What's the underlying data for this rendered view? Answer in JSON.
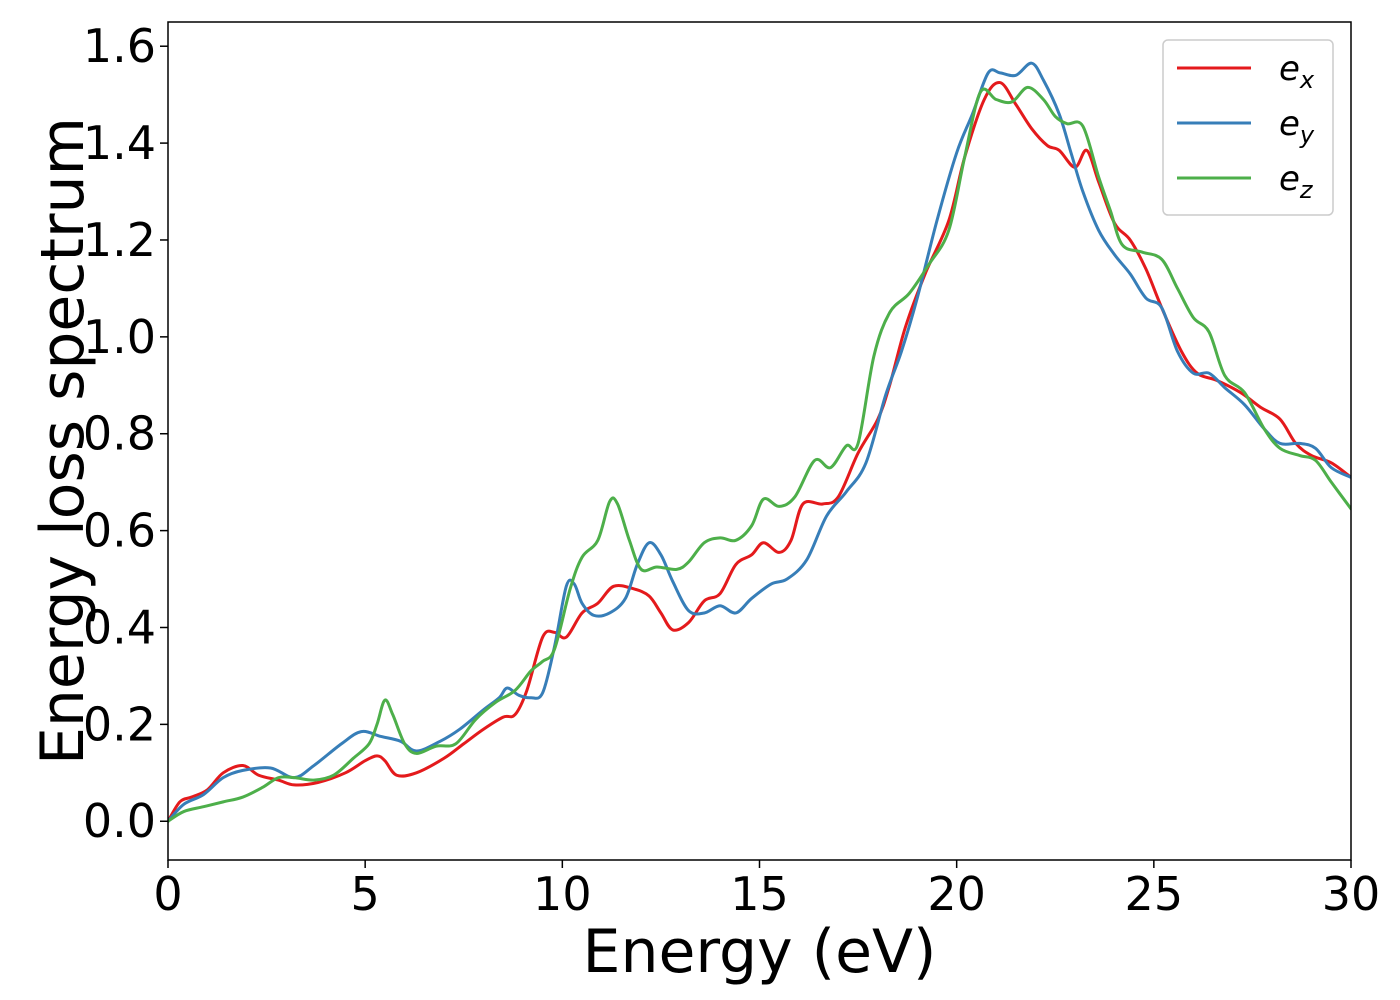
{
  "chart_data": {
    "type": "line",
    "xlabel": "Energy (eV)",
    "ylabel": "Energy loss spectrum",
    "xlim": [
      0,
      30
    ],
    "ylim": [
      -0.08,
      1.65
    ],
    "xticks": [
      0,
      5,
      10,
      15,
      20,
      25,
      30
    ],
    "xtick_labels": [
      "0",
      "5",
      "10",
      "15",
      "20",
      "25",
      "30"
    ],
    "yticks": [
      0.0,
      0.2,
      0.4,
      0.6,
      0.8,
      1.0,
      1.2,
      1.4,
      1.6
    ],
    "ytick_labels": [
      "0.0",
      "0.2",
      "0.4",
      "0.6",
      "0.8",
      "1.0",
      "1.2",
      "1.4",
      "1.6"
    ],
    "grid": false,
    "legend_position": "top-right",
    "series": [
      {
        "name": "e_x",
        "label_base": "e",
        "label_sub": "x",
        "color": "#e41a1c",
        "points": [
          [
            0,
            0.0
          ],
          [
            0.3,
            0.04
          ],
          [
            0.6,
            0.05
          ],
          [
            1.0,
            0.065
          ],
          [
            1.4,
            0.1
          ],
          [
            1.9,
            0.115
          ],
          [
            2.3,
            0.095
          ],
          [
            2.8,
            0.085
          ],
          [
            3.2,
            0.075
          ],
          [
            3.8,
            0.08
          ],
          [
            4.5,
            0.1
          ],
          [
            5.0,
            0.125
          ],
          [
            5.3,
            0.135
          ],
          [
            5.5,
            0.125
          ],
          [
            5.8,
            0.095
          ],
          [
            6.3,
            0.1
          ],
          [
            7.0,
            0.13
          ],
          [
            7.5,
            0.16
          ],
          [
            8.0,
            0.19
          ],
          [
            8.5,
            0.215
          ],
          [
            8.8,
            0.22
          ],
          [
            9.1,
            0.27
          ],
          [
            9.5,
            0.38
          ],
          [
            9.8,
            0.39
          ],
          [
            10.1,
            0.38
          ],
          [
            10.5,
            0.43
          ],
          [
            10.9,
            0.45
          ],
          [
            11.3,
            0.485
          ],
          [
            11.8,
            0.48
          ],
          [
            12.2,
            0.465
          ],
          [
            12.5,
            0.43
          ],
          [
            12.8,
            0.395
          ],
          [
            13.2,
            0.41
          ],
          [
            13.6,
            0.455
          ],
          [
            14.0,
            0.47
          ],
          [
            14.4,
            0.53
          ],
          [
            14.8,
            0.55
          ],
          [
            15.1,
            0.575
          ],
          [
            15.5,
            0.555
          ],
          [
            15.8,
            0.58
          ],
          [
            16.1,
            0.655
          ],
          [
            16.6,
            0.655
          ],
          [
            17.0,
            0.67
          ],
          [
            17.5,
            0.76
          ],
          [
            18.0,
            0.83
          ],
          [
            18.3,
            0.9
          ],
          [
            18.7,
            1.02
          ],
          [
            19.2,
            1.13
          ],
          [
            19.8,
            1.24
          ],
          [
            20.2,
            1.37
          ],
          [
            20.7,
            1.49
          ],
          [
            21.1,
            1.525
          ],
          [
            21.5,
            1.48
          ],
          [
            21.9,
            1.43
          ],
          [
            22.3,
            1.395
          ],
          [
            22.6,
            1.385
          ],
          [
            23.0,
            1.35
          ],
          [
            23.3,
            1.385
          ],
          [
            23.6,
            1.32
          ],
          [
            24.0,
            1.235
          ],
          [
            24.4,
            1.2
          ],
          [
            24.8,
            1.14
          ],
          [
            25.2,
            1.06
          ],
          [
            25.7,
            0.97
          ],
          [
            26.1,
            0.925
          ],
          [
            26.6,
            0.91
          ],
          [
            27.2,
            0.885
          ],
          [
            27.7,
            0.855
          ],
          [
            28.2,
            0.83
          ],
          [
            28.6,
            0.78
          ],
          [
            29.0,
            0.755
          ],
          [
            29.5,
            0.74
          ],
          [
            30.0,
            0.71
          ]
        ]
      },
      {
        "name": "e_y",
        "label_base": "e",
        "label_sub": "y",
        "color": "#377eb8",
        "points": [
          [
            0,
            0.0
          ],
          [
            0.4,
            0.035
          ],
          [
            0.9,
            0.055
          ],
          [
            1.4,
            0.09
          ],
          [
            1.9,
            0.105
          ],
          [
            2.6,
            0.11
          ],
          [
            3.2,
            0.09
          ],
          [
            3.7,
            0.115
          ],
          [
            4.4,
            0.16
          ],
          [
            4.9,
            0.185
          ],
          [
            5.4,
            0.175
          ],
          [
            5.9,
            0.165
          ],
          [
            6.3,
            0.145
          ],
          [
            6.9,
            0.165
          ],
          [
            7.4,
            0.19
          ],
          [
            8.0,
            0.23
          ],
          [
            8.4,
            0.255
          ],
          [
            8.6,
            0.275
          ],
          [
            8.9,
            0.26
          ],
          [
            9.2,
            0.255
          ],
          [
            9.5,
            0.265
          ],
          [
            9.8,
            0.36
          ],
          [
            10.1,
            0.485
          ],
          [
            10.3,
            0.49
          ],
          [
            10.5,
            0.45
          ],
          [
            10.8,
            0.425
          ],
          [
            11.2,
            0.43
          ],
          [
            11.6,
            0.46
          ],
          [
            11.9,
            0.53
          ],
          [
            12.2,
            0.575
          ],
          [
            12.5,
            0.55
          ],
          [
            12.8,
            0.495
          ],
          [
            13.2,
            0.435
          ],
          [
            13.6,
            0.43
          ],
          [
            14.0,
            0.445
          ],
          [
            14.4,
            0.43
          ],
          [
            14.8,
            0.46
          ],
          [
            15.3,
            0.49
          ],
          [
            15.7,
            0.5
          ],
          [
            16.2,
            0.54
          ],
          [
            16.7,
            0.63
          ],
          [
            17.2,
            0.68
          ],
          [
            17.7,
            0.74
          ],
          [
            18.2,
            0.88
          ],
          [
            18.6,
            0.97
          ],
          [
            19.0,
            1.08
          ],
          [
            19.5,
            1.24
          ],
          [
            20.0,
            1.38
          ],
          [
            20.4,
            1.46
          ],
          [
            20.8,
            1.545
          ],
          [
            21.1,
            1.545
          ],
          [
            21.5,
            1.54
          ],
          [
            21.9,
            1.565
          ],
          [
            22.2,
            1.53
          ],
          [
            22.6,
            1.46
          ],
          [
            22.9,
            1.38
          ],
          [
            23.2,
            1.3
          ],
          [
            23.6,
            1.22
          ],
          [
            24.0,
            1.17
          ],
          [
            24.4,
            1.13
          ],
          [
            24.8,
            1.08
          ],
          [
            25.2,
            1.06
          ],
          [
            25.6,
            0.97
          ],
          [
            26.0,
            0.925
          ],
          [
            26.4,
            0.925
          ],
          [
            26.8,
            0.895
          ],
          [
            27.3,
            0.86
          ],
          [
            27.8,
            0.81
          ],
          [
            28.2,
            0.78
          ],
          [
            28.7,
            0.78
          ],
          [
            29.1,
            0.77
          ],
          [
            29.5,
            0.73
          ],
          [
            30.0,
            0.71
          ]
        ]
      },
      {
        "name": "e_z",
        "label_base": "e",
        "label_sub": "z",
        "color": "#4daf4a",
        "points": [
          [
            0,
            0.0
          ],
          [
            0.4,
            0.02
          ],
          [
            0.9,
            0.03
          ],
          [
            1.4,
            0.04
          ],
          [
            1.9,
            0.05
          ],
          [
            2.4,
            0.07
          ],
          [
            2.8,
            0.09
          ],
          [
            3.2,
            0.09
          ],
          [
            3.7,
            0.085
          ],
          [
            4.2,
            0.095
          ],
          [
            4.7,
            0.13
          ],
          [
            5.1,
            0.16
          ],
          [
            5.3,
            0.2
          ],
          [
            5.5,
            0.25
          ],
          [
            5.7,
            0.22
          ],
          [
            6.0,
            0.16
          ],
          [
            6.3,
            0.14
          ],
          [
            6.8,
            0.155
          ],
          [
            7.3,
            0.16
          ],
          [
            7.8,
            0.21
          ],
          [
            8.3,
            0.245
          ],
          [
            8.8,
            0.27
          ],
          [
            9.2,
            0.31
          ],
          [
            9.5,
            0.33
          ],
          [
            9.8,
            0.355
          ],
          [
            10.2,
            0.48
          ],
          [
            10.5,
            0.545
          ],
          [
            10.9,
            0.58
          ],
          [
            11.2,
            0.66
          ],
          [
            11.4,
            0.655
          ],
          [
            11.7,
            0.58
          ],
          [
            12.0,
            0.52
          ],
          [
            12.4,
            0.525
          ],
          [
            12.9,
            0.52
          ],
          [
            13.2,
            0.535
          ],
          [
            13.6,
            0.575
          ],
          [
            14.0,
            0.585
          ],
          [
            14.4,
            0.58
          ],
          [
            14.8,
            0.61
          ],
          [
            15.1,
            0.665
          ],
          [
            15.5,
            0.65
          ],
          [
            15.9,
            0.67
          ],
          [
            16.4,
            0.745
          ],
          [
            16.8,
            0.73
          ],
          [
            17.2,
            0.775
          ],
          [
            17.5,
            0.78
          ],
          [
            17.9,
            0.96
          ],
          [
            18.3,
            1.05
          ],
          [
            18.8,
            1.09
          ],
          [
            19.3,
            1.15
          ],
          [
            19.8,
            1.22
          ],
          [
            20.2,
            1.37
          ],
          [
            20.6,
            1.505
          ],
          [
            21.0,
            1.49
          ],
          [
            21.4,
            1.485
          ],
          [
            21.8,
            1.515
          ],
          [
            22.2,
            1.49
          ],
          [
            22.5,
            1.455
          ],
          [
            22.8,
            1.44
          ],
          [
            23.2,
            1.435
          ],
          [
            23.6,
            1.33
          ],
          [
            23.9,
            1.26
          ],
          [
            24.2,
            1.19
          ],
          [
            24.7,
            1.175
          ],
          [
            25.2,
            1.16
          ],
          [
            25.6,
            1.1
          ],
          [
            26.0,
            1.04
          ],
          [
            26.4,
            1.01
          ],
          [
            26.8,
            0.92
          ],
          [
            27.3,
            0.885
          ],
          [
            27.8,
            0.81
          ],
          [
            28.2,
            0.77
          ],
          [
            28.7,
            0.755
          ],
          [
            29.1,
            0.745
          ],
          [
            29.5,
            0.7
          ],
          [
            30.0,
            0.645
          ]
        ]
      }
    ]
  }
}
